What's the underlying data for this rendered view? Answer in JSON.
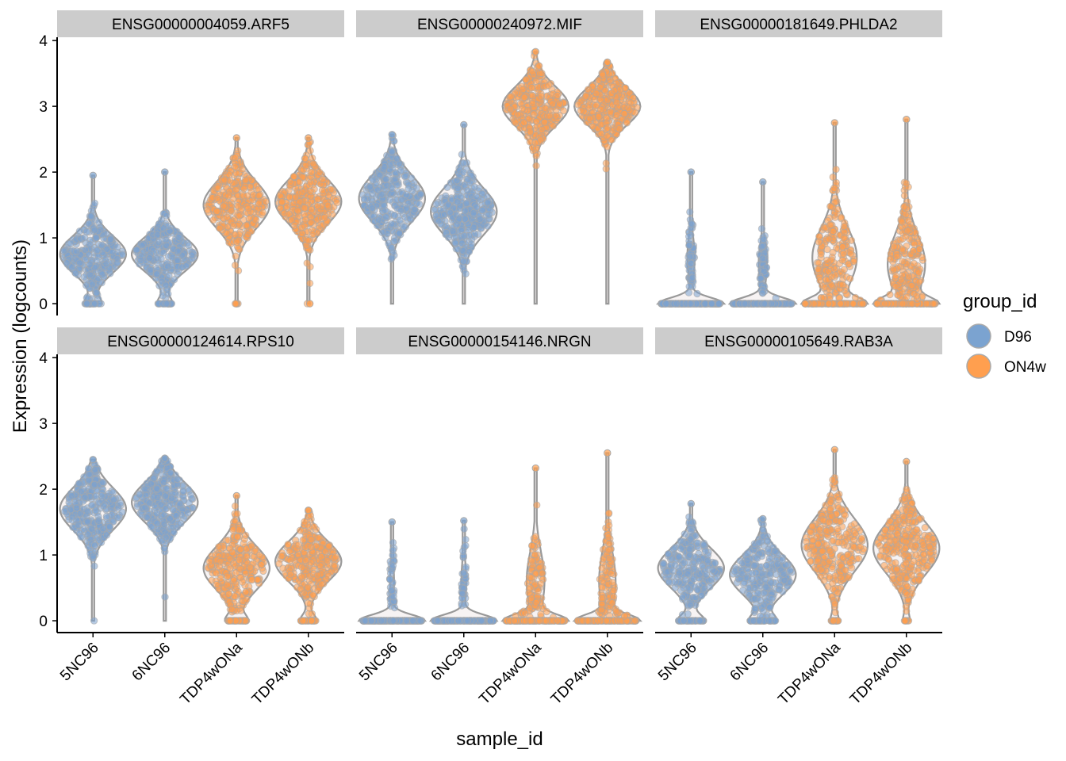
{
  "chart_data": {
    "type": "violin",
    "title": "",
    "xlabel": "sample_id",
    "ylabel": "Expression (logcounts)",
    "ylim": [
      -0.18,
      4.05
    ],
    "yticks": [
      0,
      1,
      2,
      3,
      4
    ],
    "legend": {
      "title": "group_id",
      "position": "right",
      "entries": [
        {
          "label": "D96",
          "color": "#7BA3D0"
        },
        {
          "label": "ON4w",
          "color": "#FF9F4F"
        }
      ]
    },
    "categories": [
      "5NC96",
      "6NC96",
      "TDP4wONa",
      "TDP4wONb"
    ],
    "category_groups": [
      "D96",
      "D96",
      "ON4w",
      "ON4w"
    ],
    "panels": [
      {
        "title": "ENSG00000004059.ARF5",
        "zero_fraction": [
          0.1,
          0.09,
          0.02,
          0.01
        ],
        "stats": [
          {
            "mode": 0.75,
            "sd": 0.28,
            "max": 1.95
          },
          {
            "mode": 0.75,
            "sd": 0.26,
            "max": 2.0
          },
          {
            "mode": 1.5,
            "sd": 0.35,
            "max": 2.52
          },
          {
            "mode": 1.55,
            "sd": 0.33,
            "max": 2.52
          }
        ]
      },
      {
        "title": "ENSG00000240972.MIF",
        "zero_fraction": [
          0.002,
          0.002,
          0.0,
          0.0
        ],
        "stats": [
          {
            "mode": 1.6,
            "sd": 0.35,
            "max": 2.57
          },
          {
            "mode": 1.4,
            "sd": 0.35,
            "max": 2.72
          },
          {
            "mode": 3.0,
            "sd": 0.3,
            "max": 3.83
          },
          {
            "mode": 3.0,
            "sd": 0.28,
            "max": 3.67
          }
        ]
      },
      {
        "title": "ENSG00000181649.PHLDA2",
        "zero_fraction": [
          0.8,
          0.78,
          0.35,
          0.38
        ],
        "stats": [
          {
            "mode": 0.7,
            "sd": 0.3,
            "max": 2.0
          },
          {
            "mode": 0.6,
            "sd": 0.3,
            "max": 1.85
          },
          {
            "mode": 0.7,
            "sd": 0.45,
            "max": 2.75
          },
          {
            "mode": 0.6,
            "sd": 0.45,
            "max": 2.8
          }
        ]
      },
      {
        "title": "ENSG00000124614.RPS10",
        "zero_fraction": [
          0.003,
          0.003,
          0.12,
          0.1
        ],
        "stats": [
          {
            "mode": 1.7,
            "sd": 0.32,
            "max": 2.45
          },
          {
            "mode": 1.8,
            "sd": 0.3,
            "max": 2.47
          },
          {
            "mode": 0.8,
            "sd": 0.33,
            "max": 1.9
          },
          {
            "mode": 0.9,
            "sd": 0.3,
            "max": 1.68
          }
        ]
      },
      {
        "title": "ENSG00000154146.NRGN",
        "zero_fraction": [
          0.88,
          0.86,
          0.6,
          0.62
        ],
        "stats": [
          {
            "mode": 0.6,
            "sd": 0.3,
            "max": 1.5
          },
          {
            "mode": 0.6,
            "sd": 0.3,
            "max": 1.52
          },
          {
            "mode": 0.6,
            "sd": 0.45,
            "max": 2.32
          },
          {
            "mode": 0.6,
            "sd": 0.45,
            "max": 2.55
          }
        ]
      },
      {
        "title": "ENSG00000105649.RAB3A",
        "zero_fraction": [
          0.15,
          0.14,
          0.05,
          0.04
        ],
        "stats": [
          {
            "mode": 0.8,
            "sd": 0.3,
            "max": 1.78
          },
          {
            "mode": 0.7,
            "sd": 0.3,
            "max": 1.55
          },
          {
            "mode": 1.15,
            "sd": 0.4,
            "max": 2.6
          },
          {
            "mode": 1.1,
            "sd": 0.38,
            "max": 2.42
          }
        ]
      }
    ]
  }
}
